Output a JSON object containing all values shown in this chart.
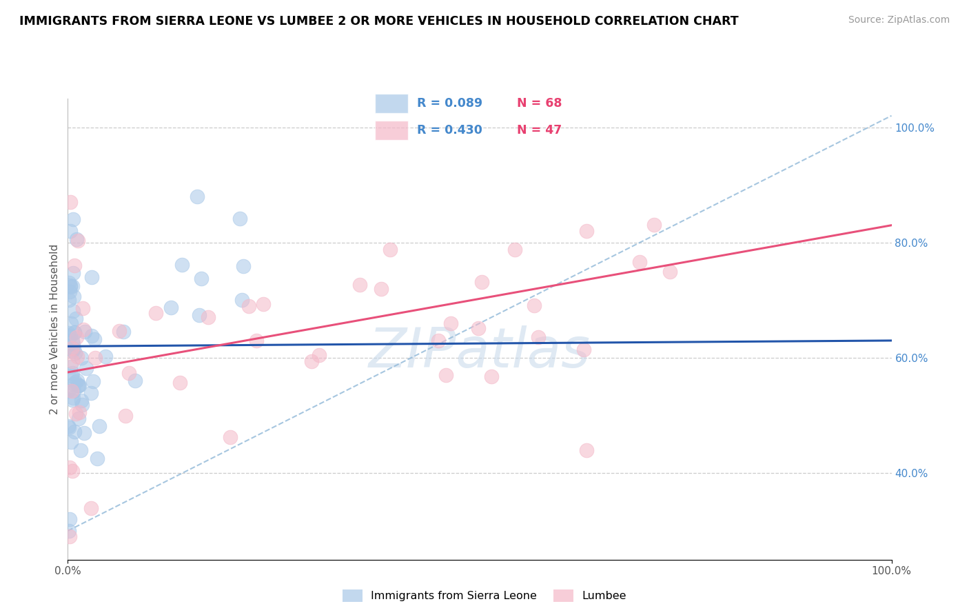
{
  "title": "IMMIGRANTS FROM SIERRA LEONE VS LUMBEE 2 OR MORE VEHICLES IN HOUSEHOLD CORRELATION CHART",
  "source": "Source: ZipAtlas.com",
  "ylabel": "2 or more Vehicles in Household",
  "blue_color": "#a8c8e8",
  "pink_color": "#f4b8c8",
  "blue_line_color": "#2255aa",
  "pink_line_color": "#e8507a",
  "dashed_line_color": "#90b8d8",
  "grid_color": "#cccccc",
  "watermark": "ZIPatlas",
  "right_tick_color": "#4488cc",
  "legend_r1": "R = 0.089",
  "legend_n1": "N = 68",
  "legend_r2": "R = 0.430",
  "legend_n2": "N = 47",
  "label_blue": "Immigrants from Sierra Leone",
  "label_pink": "Lumbee",
  "blue_r": 0.089,
  "pink_r": 0.43,
  "blue_n": 68,
  "pink_n": 47,
  "xlim": [
    0.0,
    1.0
  ],
  "ylim": [
    0.25,
    1.05
  ],
  "yticks": [
    0.4,
    0.6,
    0.8,
    1.0
  ],
  "ytick_labels": [
    "40.0%",
    "60.0%",
    "80.0%",
    "100.0%"
  ],
  "xticks": [
    0.0,
    1.0
  ],
  "xtick_labels": [
    "0.0%",
    "100.0%"
  ]
}
